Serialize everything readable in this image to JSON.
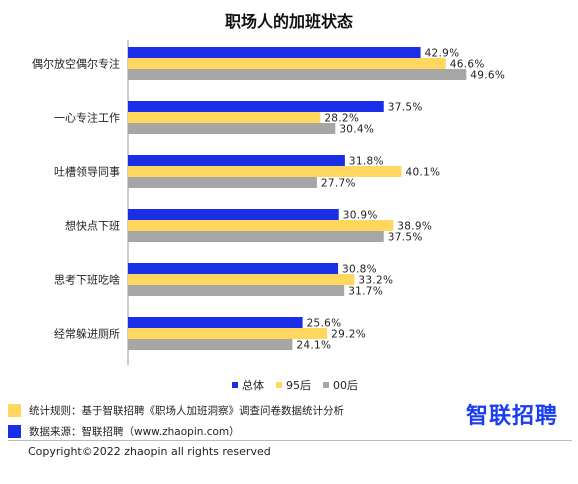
{
  "chart_data": {
    "type": "bar",
    "orientation": "horizontal",
    "title": "职场人的加班状态",
    "categories": [
      "偶尔放空偶尔专注",
      "一心专注工作",
      "吐槽领导同事",
      "想快点下班",
      "思考下班吃啥",
      "经常躲进厕所"
    ],
    "series": [
      {
        "name": "总体",
        "color": "#1a2ee8",
        "values": [
          42.9,
          37.5,
          31.8,
          30.9,
          30.8,
          25.6
        ]
      },
      {
        "name": "95后",
        "color": "#ffd75e",
        "values": [
          46.6,
          28.2,
          40.1,
          38.9,
          33.2,
          29.2
        ]
      },
      {
        "name": "00后",
        "color": "#a6a6a6",
        "values": [
          49.6,
          30.4,
          27.7,
          37.5,
          31.7,
          24.1
        ]
      }
    ],
    "value_labels": [
      [
        "42.9%",
        "46.6%",
        "49.6%"
      ],
      [
        "37.5%",
        "28.2%",
        "30.4%"
      ],
      [
        "31.8%",
        "40.1%",
        "27.7%"
      ],
      [
        "30.9%",
        "38.9%",
        "37.5%"
      ],
      [
        "30.8%",
        "33.2%",
        "31.7%"
      ],
      [
        "25.6%",
        "29.2%",
        "24.1%"
      ]
    ],
    "xlim": [
      0,
      50
    ],
    "grid": false,
    "legend_position": "bottom"
  },
  "legend": {
    "items": [
      {
        "label": "总体",
        "color": "#1a2ee8"
      },
      {
        "label": "95后",
        "color": "#ffd75e"
      },
      {
        "label": "00后",
        "color": "#a6a6a6"
      }
    ]
  },
  "notes": [
    {
      "text": "统计规则：基于智联招聘《职场人加班洞察》调查问卷数据统计分析",
      "color": "#ffd75e"
    },
    {
      "text": "数据来源：智联招聘（www.zhaopin.com）",
      "color": "#1a2ee8"
    }
  ],
  "brand": "智联招聘",
  "copyright": "Copyright©2022 zhaopin all rights reserved"
}
